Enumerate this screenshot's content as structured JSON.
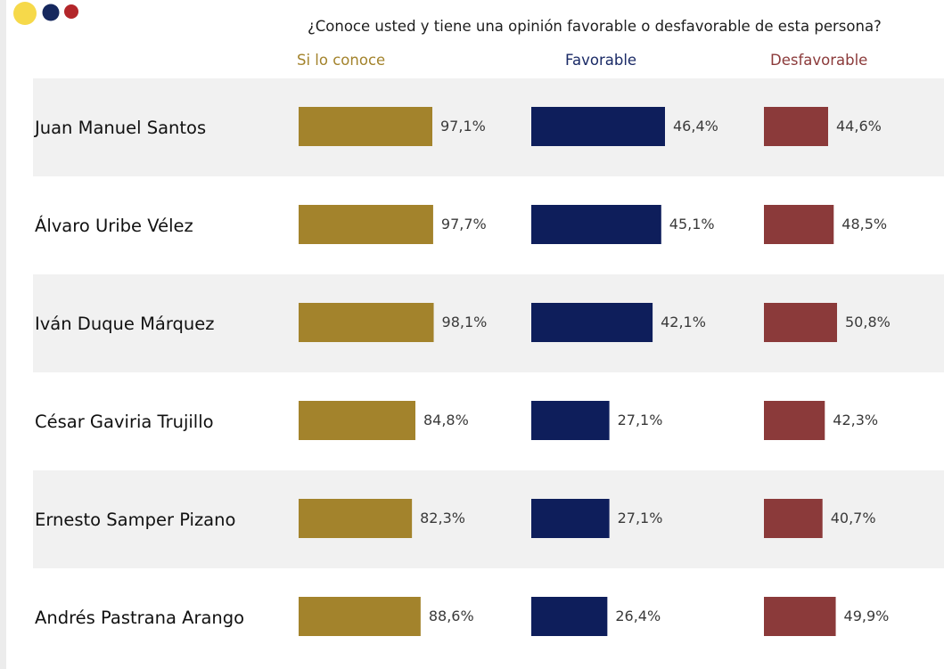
{
  "question": "¿Conoce usted y tiene una opinión favorable o desfavorable de esta persona?",
  "colors": {
    "known": "#a3832c",
    "favorable": "#0e1e5b",
    "unfavorable": "#8b3a3a",
    "band": "#f1f1f1",
    "dot_yellow": "#f6d94a",
    "dot_navy": "#16285e",
    "dot_red": "#b3262a"
  },
  "chart_data": {
    "type": "bar",
    "title": "¿Conoce usted y tiene una opinión favorable o desfavorable de esta persona?",
    "categories": [
      "Juan Manuel Santos",
      "Álvaro Uribe Vélez",
      "Iván Duque Márquez",
      "César Gaviria Trujillo",
      "Ernesto Samper Pizano",
      "Andrés Pastrana Arango"
    ],
    "series": [
      {
        "name": "Si lo conoce",
        "values": [
          97.1,
          97.7,
          98.1,
          84.8,
          82.3,
          88.6
        ],
        "labels": [
          "97,1%",
          "97,7%",
          "98,1%",
          "84,8%",
          "82,3%",
          "88,6%"
        ]
      },
      {
        "name": "Favorable",
        "values": [
          46.4,
          45.1,
          42.1,
          27.1,
          27.1,
          26.4
        ],
        "labels": [
          "46,4%",
          "45,1%",
          "42,1%",
          "27,1%",
          "27,1%",
          "26,4%"
        ]
      },
      {
        "name": "Desfavorable",
        "values": [
          44.6,
          48.5,
          50.8,
          42.3,
          40.7,
          49.9
        ],
        "labels": [
          "44,6%",
          "48,5%",
          "50,8%",
          "42,3%",
          "40,7%",
          "49,9%"
        ]
      }
    ],
    "grid": false
  }
}
